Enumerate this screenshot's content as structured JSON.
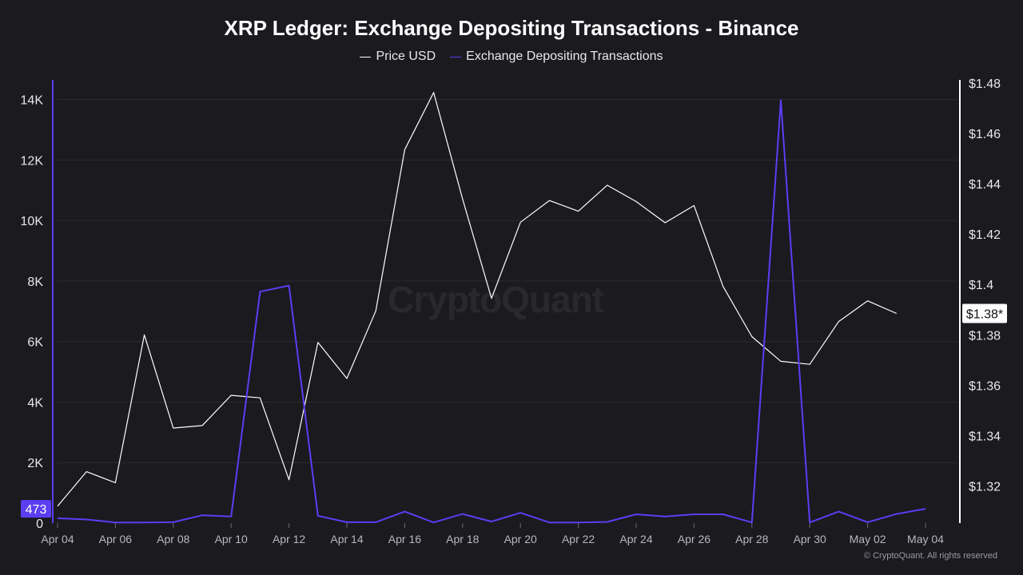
{
  "chart_data": {
    "type": "line",
    "title": "XRP Ledger: Exchange Depositing Transactions - Binance",
    "legend": {
      "placement": "top-center"
    },
    "grid": true,
    "x": [
      "Apr 04",
      "Apr 05",
      "Apr 06",
      "Apr 07",
      "Apr 08",
      "Apr 09",
      "Apr 10",
      "Apr 11",
      "Apr 12",
      "Apr 13",
      "Apr 14",
      "Apr 15",
      "Apr 16",
      "Apr 17",
      "Apr 18",
      "Apr 19",
      "Apr 20",
      "Apr 21",
      "Apr 22",
      "Apr 23",
      "Apr 24",
      "Apr 25",
      "Apr 26",
      "Apr 27",
      "Apr 28",
      "Apr 29",
      "Apr 30",
      "May 01",
      "May 02",
      "May 03",
      "May 04"
    ],
    "x_tick_labels": [
      "Apr 04",
      "Apr 06",
      "Apr 08",
      "Apr 10",
      "Apr 12",
      "Apr 14",
      "Apr 16",
      "Apr 18",
      "Apr 20",
      "Apr 22",
      "Apr 24",
      "Apr 26",
      "Apr 28",
      "Apr 30",
      "May 02",
      "May 04"
    ],
    "y_left": {
      "ticks": [
        "0",
        "2K",
        "4K",
        "6K",
        "8K",
        "10K",
        "12K",
        "14K"
      ],
      "range": [
        0,
        14650
      ]
    },
    "y_right": {
      "ticks": [
        "$1.32",
        "$1.34",
        "$1.36",
        "$1.38",
        "$1.4",
        "$1.42",
        "$1.44",
        "$1.46",
        "$1.48"
      ],
      "range": [
        1.3053,
        1.4812
      ]
    },
    "series": [
      {
        "name": "Price USD",
        "axis": "right",
        "color": "#ffffff",
        "values": [
          1.312,
          1.3257,
          1.3213,
          1.38,
          1.343,
          1.344,
          1.356,
          1.355,
          1.3225,
          1.377,
          1.3627,
          1.3895,
          1.4535,
          1.4762,
          1.4339,
          1.3945,
          1.4247,
          1.4333,
          1.4291,
          1.4394,
          1.4329,
          1.4245,
          1.4313,
          1.3993,
          1.3793,
          1.3695,
          1.3683,
          1.3853,
          1.3935,
          1.3885,
          null
        ]
      },
      {
        "name": "Exchange Depositing Transactions",
        "axis": "left",
        "color": "#5b3ef2",
        "values": [
          160,
          120,
          20,
          20,
          30,
          260,
          220,
          7650,
          7850,
          240,
          30,
          30,
          380,
          20,
          300,
          50,
          340,
          20,
          20,
          40,
          290,
          220,
          290,
          290,
          20,
          13980,
          20,
          380,
          30,
          300,
          473
        ]
      }
    ],
    "last_value_labels": {
      "left": "473",
      "right": "$1.38*"
    }
  },
  "footer": {
    "copyright": "© CryptoQuant. All rights reserved"
  },
  "watermark": "CryptoQuant"
}
